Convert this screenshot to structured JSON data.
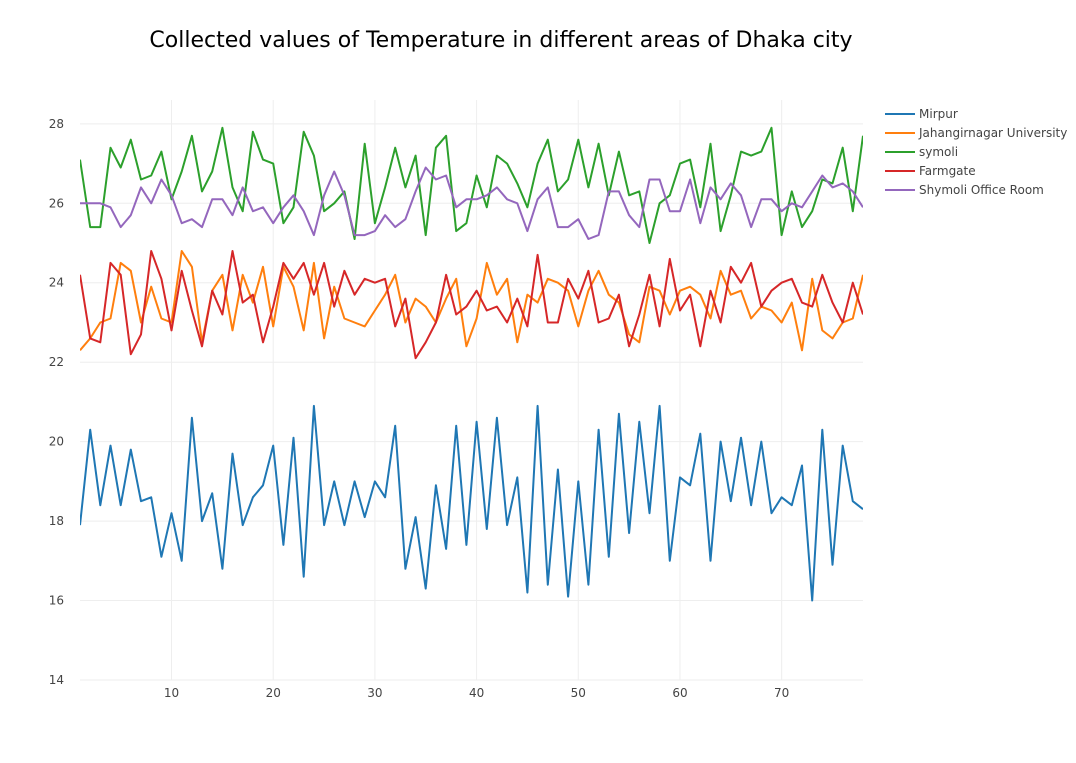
{
  "chart_data": {
    "type": "line",
    "title": "Collected values of Temperature in different areas of Dhaka city",
    "xlabel": "",
    "ylabel": "",
    "xlim": [
      1,
      78
    ],
    "ylim": [
      14,
      28.6
    ],
    "x_ticks": [
      10,
      20,
      30,
      40,
      50,
      60,
      70
    ],
    "y_ticks": [
      14,
      16,
      18,
      20,
      22,
      24,
      26,
      28
    ],
    "grid": true,
    "legend_position": "top-right",
    "series": [
      {
        "name": "Mirpur",
        "color": "#1f77b4",
        "values": [
          17.9,
          20.3,
          18.4,
          19.9,
          18.4,
          19.8,
          18.5,
          18.6,
          17.1,
          18.2,
          17.0,
          20.6,
          18.0,
          18.7,
          16.8,
          19.7,
          17.9,
          18.6,
          18.9,
          19.9,
          17.4,
          20.1,
          16.6,
          20.9,
          17.9,
          19.0,
          17.9,
          19.0,
          18.1,
          19.0,
          18.6,
          20.4,
          16.8,
          18.1,
          16.3,
          18.9,
          17.3,
          20.4,
          17.4,
          20.5,
          17.8,
          20.6,
          17.9,
          19.1,
          16.2,
          20.9,
          16.4,
          19.3,
          16.1,
          19.0,
          16.4,
          20.3,
          17.1,
          20.7,
          17.7,
          20.5,
          18.2,
          20.9,
          17.0,
          19.1,
          18.9,
          20.2,
          17.0,
          20.0,
          18.5,
          20.1,
          18.4,
          20.0,
          18.2,
          18.6,
          18.4,
          19.4,
          16.0,
          20.3,
          16.9,
          19.9,
          18.5,
          18.3
        ]
      },
      {
        "name": "Jahangirnagar University",
        "color": "#ff7f0e",
        "values": [
          22.3,
          22.6,
          23.0,
          23.1,
          24.5,
          24.3,
          23.0,
          23.9,
          23.1,
          23.0,
          24.8,
          24.4,
          22.5,
          23.8,
          24.2,
          22.8,
          24.2,
          23.5,
          24.4,
          22.9,
          24.4,
          23.9,
          22.8,
          24.5,
          22.6,
          23.9,
          23.1,
          23.0,
          22.9,
          23.3,
          23.7,
          24.2,
          23.0,
          23.6,
          23.4,
          23.0,
          23.6,
          24.1,
          22.4,
          23.1,
          24.5,
          23.7,
          24.1,
          22.5,
          23.7,
          23.5,
          24.1,
          24.0,
          23.8,
          22.9,
          23.8,
          24.3,
          23.7,
          23.5,
          22.7,
          22.5,
          23.9,
          23.8,
          23.2,
          23.8,
          23.9,
          23.7,
          23.1,
          24.3,
          23.7,
          23.8,
          23.1,
          23.4,
          23.3,
          23.0,
          23.5,
          22.3,
          24.1,
          22.8,
          22.6,
          23.0,
          23.1,
          24.2
        ]
      },
      {
        "name": "symoli",
        "color": "#2ca02c",
        "values": [
          27.1,
          25.4,
          25.4,
          27.4,
          26.9,
          27.6,
          26.6,
          26.7,
          27.3,
          26.1,
          26.8,
          27.7,
          26.3,
          26.8,
          27.9,
          26.4,
          25.8,
          27.8,
          27.1,
          27.0,
          25.5,
          25.9,
          27.8,
          27.2,
          25.8,
          26.0,
          26.3,
          25.1,
          27.5,
          25.5,
          26.4,
          27.4,
          26.4,
          27.2,
          25.2,
          27.4,
          27.7,
          25.3,
          25.5,
          26.7,
          25.9,
          27.2,
          27.0,
          26.5,
          25.9,
          27.0,
          27.6,
          26.3,
          26.6,
          27.6,
          26.4,
          27.5,
          26.2,
          27.3,
          26.2,
          26.3,
          25.0,
          26.0,
          26.2,
          27.0,
          27.1,
          25.9,
          27.5,
          25.3,
          26.2,
          27.3,
          27.2,
          27.3,
          27.9,
          25.2,
          26.3,
          25.4,
          25.8,
          26.6,
          26.5,
          27.4,
          25.8,
          27.7
        ]
      },
      {
        "name": "Farmgate",
        "color": "#d62728",
        "values": [
          24.2,
          22.6,
          22.5,
          24.5,
          24.2,
          22.2,
          22.7,
          24.8,
          24.1,
          22.8,
          24.3,
          23.3,
          22.4,
          23.8,
          23.2,
          24.8,
          23.5,
          23.7,
          22.5,
          23.4,
          24.5,
          24.1,
          24.5,
          23.7,
          24.5,
          23.4,
          24.3,
          23.7,
          24.1,
          24.0,
          24.1,
          22.9,
          23.6,
          22.1,
          22.5,
          23.0,
          24.2,
          23.2,
          23.4,
          23.8,
          23.3,
          23.4,
          23.0,
          23.6,
          22.9,
          24.7,
          23.0,
          23.0,
          24.1,
          23.6,
          24.3,
          23.0,
          23.1,
          23.7,
          22.4,
          23.2,
          24.2,
          22.9,
          24.6,
          23.3,
          23.7,
          22.4,
          23.8,
          23.0,
          24.4,
          24.0,
          24.5,
          23.4,
          23.8,
          24.0,
          24.1,
          23.5,
          23.4,
          24.2,
          23.5,
          23.0,
          24.0,
          23.2
        ]
      },
      {
        "name": "Shymoli Office Room",
        "color": "#9467bd",
        "values": [
          26.0,
          26.0,
          26.0,
          25.9,
          25.4,
          25.7,
          26.4,
          26.0,
          26.6,
          26.2,
          25.5,
          25.6,
          25.4,
          26.1,
          26.1,
          25.7,
          26.4,
          25.8,
          25.9,
          25.5,
          25.9,
          26.2,
          25.8,
          25.2,
          26.2,
          26.8,
          26.2,
          25.2,
          25.2,
          25.3,
          25.7,
          25.4,
          25.6,
          26.3,
          26.9,
          26.6,
          26.7,
          25.9,
          26.1,
          26.1,
          26.2,
          26.4,
          26.1,
          26.0,
          25.3,
          26.1,
          26.4,
          25.4,
          25.4,
          25.6,
          25.1,
          25.2,
          26.3,
          26.3,
          25.7,
          25.4,
          26.6,
          26.6,
          25.8,
          25.8,
          26.6,
          25.5,
          26.4,
          26.1,
          26.5,
          26.2,
          25.4,
          26.1,
          26.1,
          25.8,
          26.0,
          25.9,
          26.3,
          26.7,
          26.4,
          26.5,
          26.3,
          25.9
        ]
      }
    ]
  }
}
